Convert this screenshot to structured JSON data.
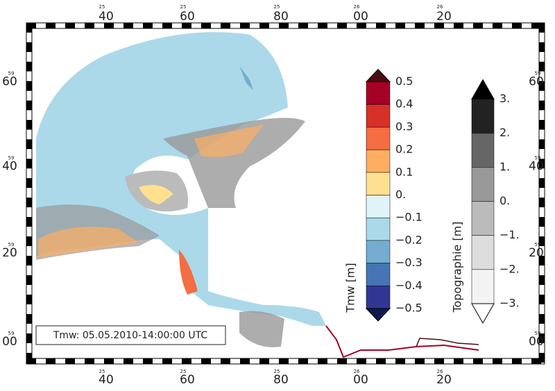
{
  "map": {
    "top_labels": [
      {
        "minor": "25",
        "major": "40"
      },
      {
        "minor": "25",
        "major": "60"
      },
      {
        "minor": "25",
        "major": "80"
      },
      {
        "minor": "26",
        "major": "00"
      },
      {
        "minor": "26",
        "major": "20"
      }
    ],
    "side_labels": [
      {
        "minor": "59",
        "major": "60"
      },
      {
        "minor": "59",
        "major": "40"
      },
      {
        "minor": "59",
        "major": "20"
      },
      {
        "minor": "59",
        "major": "00"
      }
    ],
    "annotation": "Tmw: 05.05.2010-14:00:00 UTC",
    "tmw_colorbar": {
      "title": "Tmw [m]",
      "labels": [
        "0.5",
        "0.4",
        "0.3",
        "0.2",
        "0.1",
        "0.",
        "−0.1",
        "−0.2",
        "−0.3",
        "−0.4",
        "−0.5"
      ],
      "colors": [
        "#4a0c14",
        "#a50026",
        "#d73027",
        "#f46d43",
        "#fdae61",
        "#fee090",
        "#e0f3f8",
        "#abd9e9",
        "#74add1",
        "#4575b4",
        "#313695",
        "#0c1a4e"
      ]
    },
    "topo_colorbar": {
      "title": "Topographie [m]",
      "labels": [
        "3.",
        "2.",
        "1.",
        "0.",
        "−1.",
        "−2.",
        "−3."
      ],
      "colors": [
        "#000000",
        "#222222",
        "#666666",
        "#999999",
        "#bbbbbb",
        "#dddddd",
        "#f3f3f3",
        "#ffffff"
      ]
    }
  }
}
